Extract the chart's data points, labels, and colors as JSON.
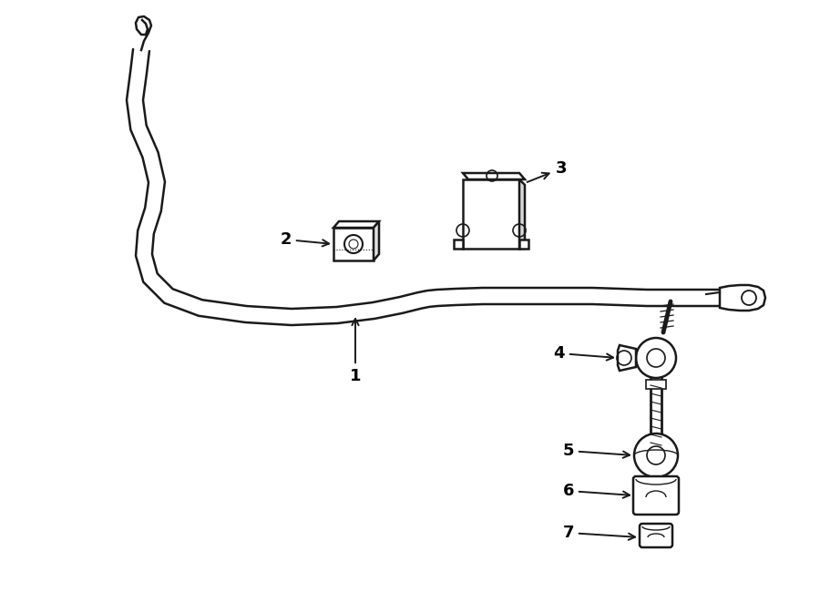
{
  "bg_color": "#ffffff",
  "line_color": "#1a1a1a",
  "lw": 1.8,
  "label_fontsize": 13,
  "figsize": [
    9.0,
    6.61
  ],
  "dpi": 100
}
